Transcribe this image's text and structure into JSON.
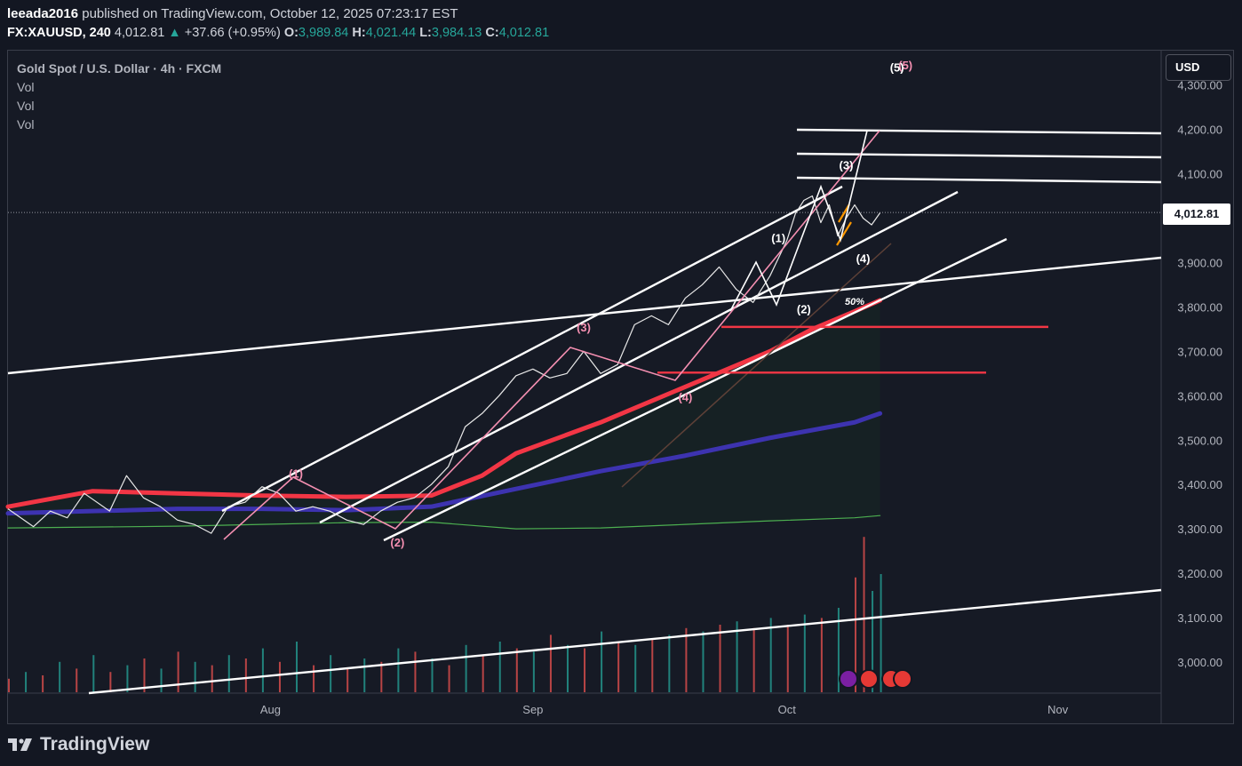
{
  "header": {
    "publisher": "leeada2016",
    "published_text": "published on TradingView.com, October 12, 2025 07:23:17 EST",
    "symbol": "FX:XAUUSD, 240",
    "last_price": "4,012.81",
    "change_arrow": "▲",
    "change": "+37.66 (+0.95%)",
    "open_label": "O:",
    "open": "3,989.84",
    "high_label": "H:",
    "high": "4,021.44",
    "low_label": "L:",
    "low": "3,984.13",
    "close_label": "C:",
    "close": "4,012.81"
  },
  "legend": {
    "title": "Gold Spot / U.S. Dollar · 4h · FXCM",
    "indicators": [
      "Vol",
      "Vol",
      "Vol"
    ]
  },
  "currency_button": "USD",
  "current_price_tag": "4,012.81",
  "brand": "TradingView",
  "colors": {
    "background": "#131722",
    "up": "#26a69a",
    "down": "#ef5350",
    "ma_red": "#f23645",
    "ma_blue": "#3d33b0",
    "ma_green": "#4caf50",
    "wave_pink": "#f48fb1",
    "trendline": "#ffffff"
  },
  "chart_data": {
    "type": "line",
    "title": "Gold Spot / U.S. Dollar · 4h · FXCM",
    "y_tick_labels": [
      "3,000.00",
      "3,100.00",
      "3,200.00",
      "3,300.00",
      "3,400.00",
      "3,500.00",
      "3,600.00",
      "3,700.00",
      "3,800.00",
      "3,900.00",
      "4,000.00",
      "4,100.00",
      "4,200.00",
      "4,300.00"
    ],
    "y_ticks": [
      3000,
      3100,
      3200,
      3300,
      3400,
      3500,
      3600,
      3700,
      3800,
      3900,
      4000,
      4100,
      4200,
      4300
    ],
    "x_tick_labels": [
      "Aug",
      "Sep",
      "Oct",
      "Nov"
    ],
    "ylim": [
      2930,
      4320
    ],
    "x_unit": "day offset from Jul 1, 2025",
    "price_series": {
      "name": "XAUUSD",
      "x": [
        0,
        3,
        5,
        7,
        9,
        12,
        14,
        16,
        18,
        20,
        22,
        24,
        26,
        28,
        30,
        32,
        34,
        36,
        38,
        40,
        42,
        44,
        46,
        48,
        50,
        52,
        54,
        56,
        58,
        60,
        62,
        64,
        66,
        68,
        70,
        72,
        74,
        76,
        78,
        80,
        82,
        84,
        86,
        88,
        90,
        92,
        93,
        94,
        95,
        96,
        97,
        98,
        99,
        100,
        101,
        102,
        103
      ],
      "y": [
        3345,
        3305,
        3340,
        3325,
        3380,
        3340,
        3420,
        3370,
        3350,
        3320,
        3310,
        3290,
        3350,
        3360,
        3395,
        3380,
        3340,
        3350,
        3340,
        3320,
        3310,
        3340,
        3360,
        3370,
        3400,
        3440,
        3530,
        3560,
        3600,
        3645,
        3660,
        3640,
        3650,
        3700,
        3650,
        3670,
        3760,
        3780,
        3760,
        3820,
        3850,
        3890,
        3840,
        3810,
        3870,
        3950,
        4010,
        4040,
        4050,
        3990,
        4030,
        3960,
        4000,
        4030,
        4000,
        3985,
        4012
      ]
    },
    "moving_averages": [
      {
        "color": "red",
        "x": [
          0,
          10,
          20,
          30,
          40,
          50,
          56,
          60,
          70,
          80,
          90,
          95,
          100,
          103
        ],
        "y": [
          3350,
          3385,
          3380,
          3375,
          3372,
          3375,
          3420,
          3470,
          3540,
          3620,
          3700,
          3750,
          3790,
          3815
        ]
      },
      {
        "color": "blue",
        "x": [
          0,
          10,
          20,
          30,
          40,
          50,
          60,
          70,
          80,
          90,
          100,
          103
        ],
        "y": [
          3335,
          3340,
          3345,
          3345,
          3342,
          3350,
          3390,
          3430,
          3465,
          3505,
          3540,
          3560
        ]
      },
      {
        "color": "green",
        "x": [
          0,
          10,
          20,
          30,
          40,
          50,
          60,
          70,
          80,
          90,
          100,
          103
        ],
        "y": [
          3302,
          3304,
          3306,
          3310,
          3314,
          3315,
          3300,
          3302,
          3310,
          3318,
          3325,
          3330
        ]
      }
    ],
    "wave_labels": [
      {
        "text": "(1)",
        "color": "pink",
        "x": 34,
        "y": 3415
      },
      {
        "text": "(2)",
        "color": "pink",
        "x": 46,
        "y": 3260
      },
      {
        "text": "(3)",
        "color": "pink",
        "x": 68,
        "y": 3745
      },
      {
        "text": "(4)",
        "color": "pink",
        "x": 80,
        "y": 3588
      },
      {
        "text": "(5)",
        "color": "pink",
        "x": 106,
        "y": 4335
      },
      {
        "text": "(1)",
        "color": "white",
        "x": 91,
        "y": 3946
      },
      {
        "text": "(2)",
        "color": "white",
        "x": 94,
        "y": 3786
      },
      {
        "text": "(3)",
        "color": "white",
        "x": 99,
        "y": 4110
      },
      {
        "text": "(5)",
        "color": "white",
        "x": 105,
        "y": 4330
      },
      {
        "text": "(4)",
        "color": "white",
        "x": 101,
        "y": 3900
      },
      {
        "text": "50%",
        "color": "white",
        "x": 100,
        "y": 3805
      }
    ],
    "horizontal_levels": [
      3755,
      3652
    ],
    "volume_series": {
      "x": [
        0,
        2,
        4,
        6,
        8,
        10,
        12,
        14,
        16,
        18,
        20,
        22,
        24,
        26,
        28,
        30,
        32,
        34,
        36,
        38,
        40,
        42,
        44,
        46,
        48,
        50,
        52,
        54,
        56,
        58,
        60,
        62,
        64,
        66,
        68,
        70,
        72,
        74,
        76,
        78,
        80,
        82,
        84,
        86,
        88,
        90,
        92,
        94,
        96,
        98,
        100,
        101,
        102,
        103
      ],
      "height_pct": [
        8,
        12,
        10,
        18,
        14,
        22,
        12,
        16,
        20,
        14,
        24,
        18,
        16,
        22,
        20,
        26,
        18,
        30,
        16,
        22,
        14,
        20,
        18,
        26,
        24,
        20,
        16,
        28,
        22,
        30,
        26,
        24,
        34,
        28,
        26,
        36,
        30,
        28,
        32,
        34,
        38,
        36,
        40,
        42,
        38,
        44,
        40,
        46,
        44,
        50,
        68,
        92,
        60,
        70
      ],
      "color": [
        "down",
        "up",
        "down",
        "up",
        "down",
        "up",
        "down",
        "up",
        "down",
        "up",
        "down",
        "up",
        "down",
        "up",
        "down",
        "up",
        "down",
        "up",
        "down",
        "up",
        "down",
        "up",
        "down",
        "up",
        "down",
        "up",
        "down",
        "up",
        "down",
        "up",
        "down",
        "up",
        "down",
        "up",
        "down",
        "up",
        "down",
        "up",
        "down",
        "up",
        "down",
        "up",
        "down",
        "up",
        "down",
        "up",
        "down",
        "up",
        "down",
        "up",
        "down",
        "down",
        "up",
        "up"
      ]
    },
    "grid": false,
    "legend_position": "top-left"
  }
}
